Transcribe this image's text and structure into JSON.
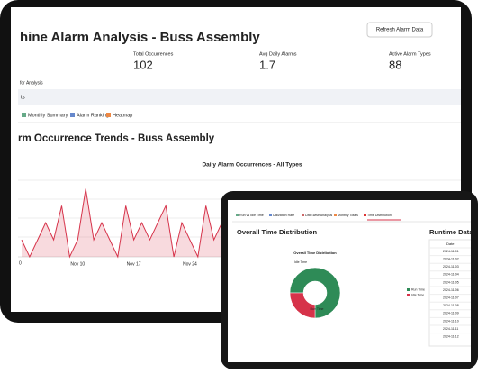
{
  "laptop": {
    "title": "hine Alarm Analysis - Buss Assembly",
    "button": "Refresh Alarm Data",
    "metrics": [
      {
        "label": "Total Occurrences",
        "value": 102
      },
      {
        "label": "Avg Daily Alarms",
        "value": 1.7
      },
      {
        "label": "Active Alarm Types",
        "value": 88
      }
    ],
    "filter_label": "for Analysis",
    "filter_value": "ts",
    "tabs": [
      "Monthly Summary",
      "Alarm Ranking",
      "Heatmap"
    ],
    "section_title": "rm Occurrence Trends - Buss Assembly"
  },
  "tablet": {
    "tabs": [
      "Run vs Idle Time",
      "Utilization Rate",
      "Date-wise Analysis",
      "Monthly Totals",
      "Time Distribution"
    ],
    "heading": "Overall Time Distribution",
    "side_heading": "Runtime Data",
    "table": {
      "header": "Date",
      "rows": [
        "2024-11-01",
        "2024-11-02",
        "2024-11-03",
        "2024-11-04",
        "2024-11-05",
        "2024-11-06",
        "2024-11-07",
        "2024-11-08",
        "2024-11-09",
        "2024-11-10",
        "2024-11-11",
        "2024-11-12"
      ]
    }
  },
  "chart_data": [
    {
      "type": "area",
      "title": "Daily Alarm Occurrences - All Types",
      "color": "#d6334a",
      "categories": [
        null,
        null,
        null,
        null,
        null,
        null,
        null,
        "Nov 10",
        null,
        null,
        null,
        null,
        null,
        null,
        "Nov 17",
        null,
        null,
        null,
        null,
        null,
        null,
        "Nov 24",
        null,
        null,
        null,
        null
      ],
      "values": [
        1,
        0,
        1,
        2,
        1,
        3,
        0,
        1,
        4,
        1,
        2,
        1,
        0,
        3,
        1,
        2,
        1,
        2,
        3,
        0,
        2,
        1,
        0,
        3,
        1,
        2
      ],
      "ylim": [
        0,
        4.5
      ],
      "yticks": [
        0
      ],
      "grid": true
    },
    {
      "type": "pie",
      "title": "Overall Time Distribution",
      "series": [
        {
          "name": "Run Time",
          "color": "#2e8b57",
          "values": [
            75
          ]
        },
        {
          "name": "Idle Time",
          "color": "#d6334a",
          "values": [
            25
          ]
        }
      ]
    }
  ]
}
